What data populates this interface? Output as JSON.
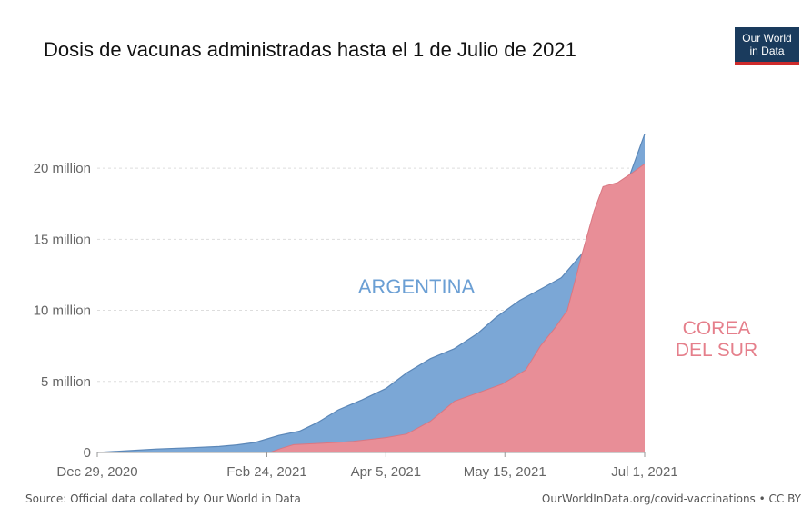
{
  "header": {
    "title": "Dosis de vacunas administradas hasta el 1 de Julio de 2021",
    "logo_line1": "Our World",
    "logo_line2": "in Data"
  },
  "footer": {
    "source": "Source: Official data collated by Our World in Data",
    "credit": "OurWorldInData.org/covid-vaccinations • CC BY"
  },
  "colors": {
    "argentina": "#7ba7d6",
    "argentina_edge": "#5b87b8",
    "corea": "#e88e97",
    "corea_label": "#e57f8b",
    "argentina_label": "#6b9fd4",
    "logo_bg": "#1a3b5d",
    "logo_accent": "#ce2b2b"
  },
  "chart_data": {
    "type": "area",
    "title": "Dosis de vacunas administradas hasta el 1 de Julio de 2021",
    "ylim": [
      0,
      22500000
    ],
    "grid": true,
    "y_ticks": [
      {
        "value": 0,
        "label": "0"
      },
      {
        "value": 5000000,
        "label": "5 million"
      },
      {
        "value": 10000000,
        "label": "10 million"
      },
      {
        "value": 15000000,
        "label": "15 million"
      },
      {
        "value": 20000000,
        "label": "20 million"
      }
    ],
    "x_ticks": [
      {
        "date": "2020-12-29",
        "label": "Dec 29, 2020"
      },
      {
        "date": "2021-02-24",
        "label": "Feb 24, 2021"
      },
      {
        "date": "2021-04-05",
        "label": "Apr 5, 2021"
      },
      {
        "date": "2021-05-15",
        "label": "May 15, 2021"
      },
      {
        "date": "2021-07-01",
        "label": "Jul 1, 2021"
      }
    ],
    "x_range": [
      "2020-12-29",
      "2021-07-01"
    ],
    "series": [
      {
        "name": "ARGENTINA",
        "label_lines": [
          "ARGENTINA"
        ],
        "points": [
          [
            "2020-12-29",
            0
          ],
          [
            "2021-01-08",
            120000
          ],
          [
            "2021-01-18",
            240000
          ],
          [
            "2021-01-29",
            330000
          ],
          [
            "2021-02-08",
            420000
          ],
          [
            "2021-02-14",
            540000
          ],
          [
            "2021-02-20",
            700000
          ],
          [
            "2021-02-28",
            1200000
          ],
          [
            "2021-03-07",
            1500000
          ],
          [
            "2021-03-13",
            2100000
          ],
          [
            "2021-03-20",
            3000000
          ],
          [
            "2021-03-28",
            3700000
          ],
          [
            "2021-04-05",
            4500000
          ],
          [
            "2021-04-12",
            5600000
          ],
          [
            "2021-04-20",
            6600000
          ],
          [
            "2021-04-28",
            7300000
          ],
          [
            "2021-05-06",
            8400000
          ],
          [
            "2021-05-12",
            9500000
          ],
          [
            "2021-05-20",
            10700000
          ],
          [
            "2021-05-28",
            11600000
          ],
          [
            "2021-06-03",
            12300000
          ],
          [
            "2021-06-10",
            14000000
          ],
          [
            "2021-06-16",
            16300000
          ],
          [
            "2021-06-21",
            17500000
          ],
          [
            "2021-06-26",
            19500000
          ],
          [
            "2021-07-01",
            22400000
          ]
        ]
      },
      {
        "name": "COREA DEL SUR",
        "label_lines": [
          "COREA",
          "DEL SUR"
        ],
        "points": [
          [
            "2020-12-29",
            0
          ],
          [
            "2021-02-25",
            0
          ],
          [
            "2021-03-01",
            300000
          ],
          [
            "2021-03-05",
            550000
          ],
          [
            "2021-03-15",
            650000
          ],
          [
            "2021-03-25",
            780000
          ],
          [
            "2021-04-05",
            1050000
          ],
          [
            "2021-04-12",
            1300000
          ],
          [
            "2021-04-20",
            2200000
          ],
          [
            "2021-04-28",
            3600000
          ],
          [
            "2021-05-06",
            4200000
          ],
          [
            "2021-05-14",
            4800000
          ],
          [
            "2021-05-22",
            5800000
          ],
          [
            "2021-05-27",
            7500000
          ],
          [
            "2021-06-01",
            8800000
          ],
          [
            "2021-06-05",
            10000000
          ],
          [
            "2021-06-10",
            14000000
          ],
          [
            "2021-06-14",
            17000000
          ],
          [
            "2021-06-17",
            18700000
          ],
          [
            "2021-06-22",
            19000000
          ],
          [
            "2021-06-27",
            19700000
          ],
          [
            "2021-07-01",
            20300000
          ]
        ]
      }
    ]
  }
}
